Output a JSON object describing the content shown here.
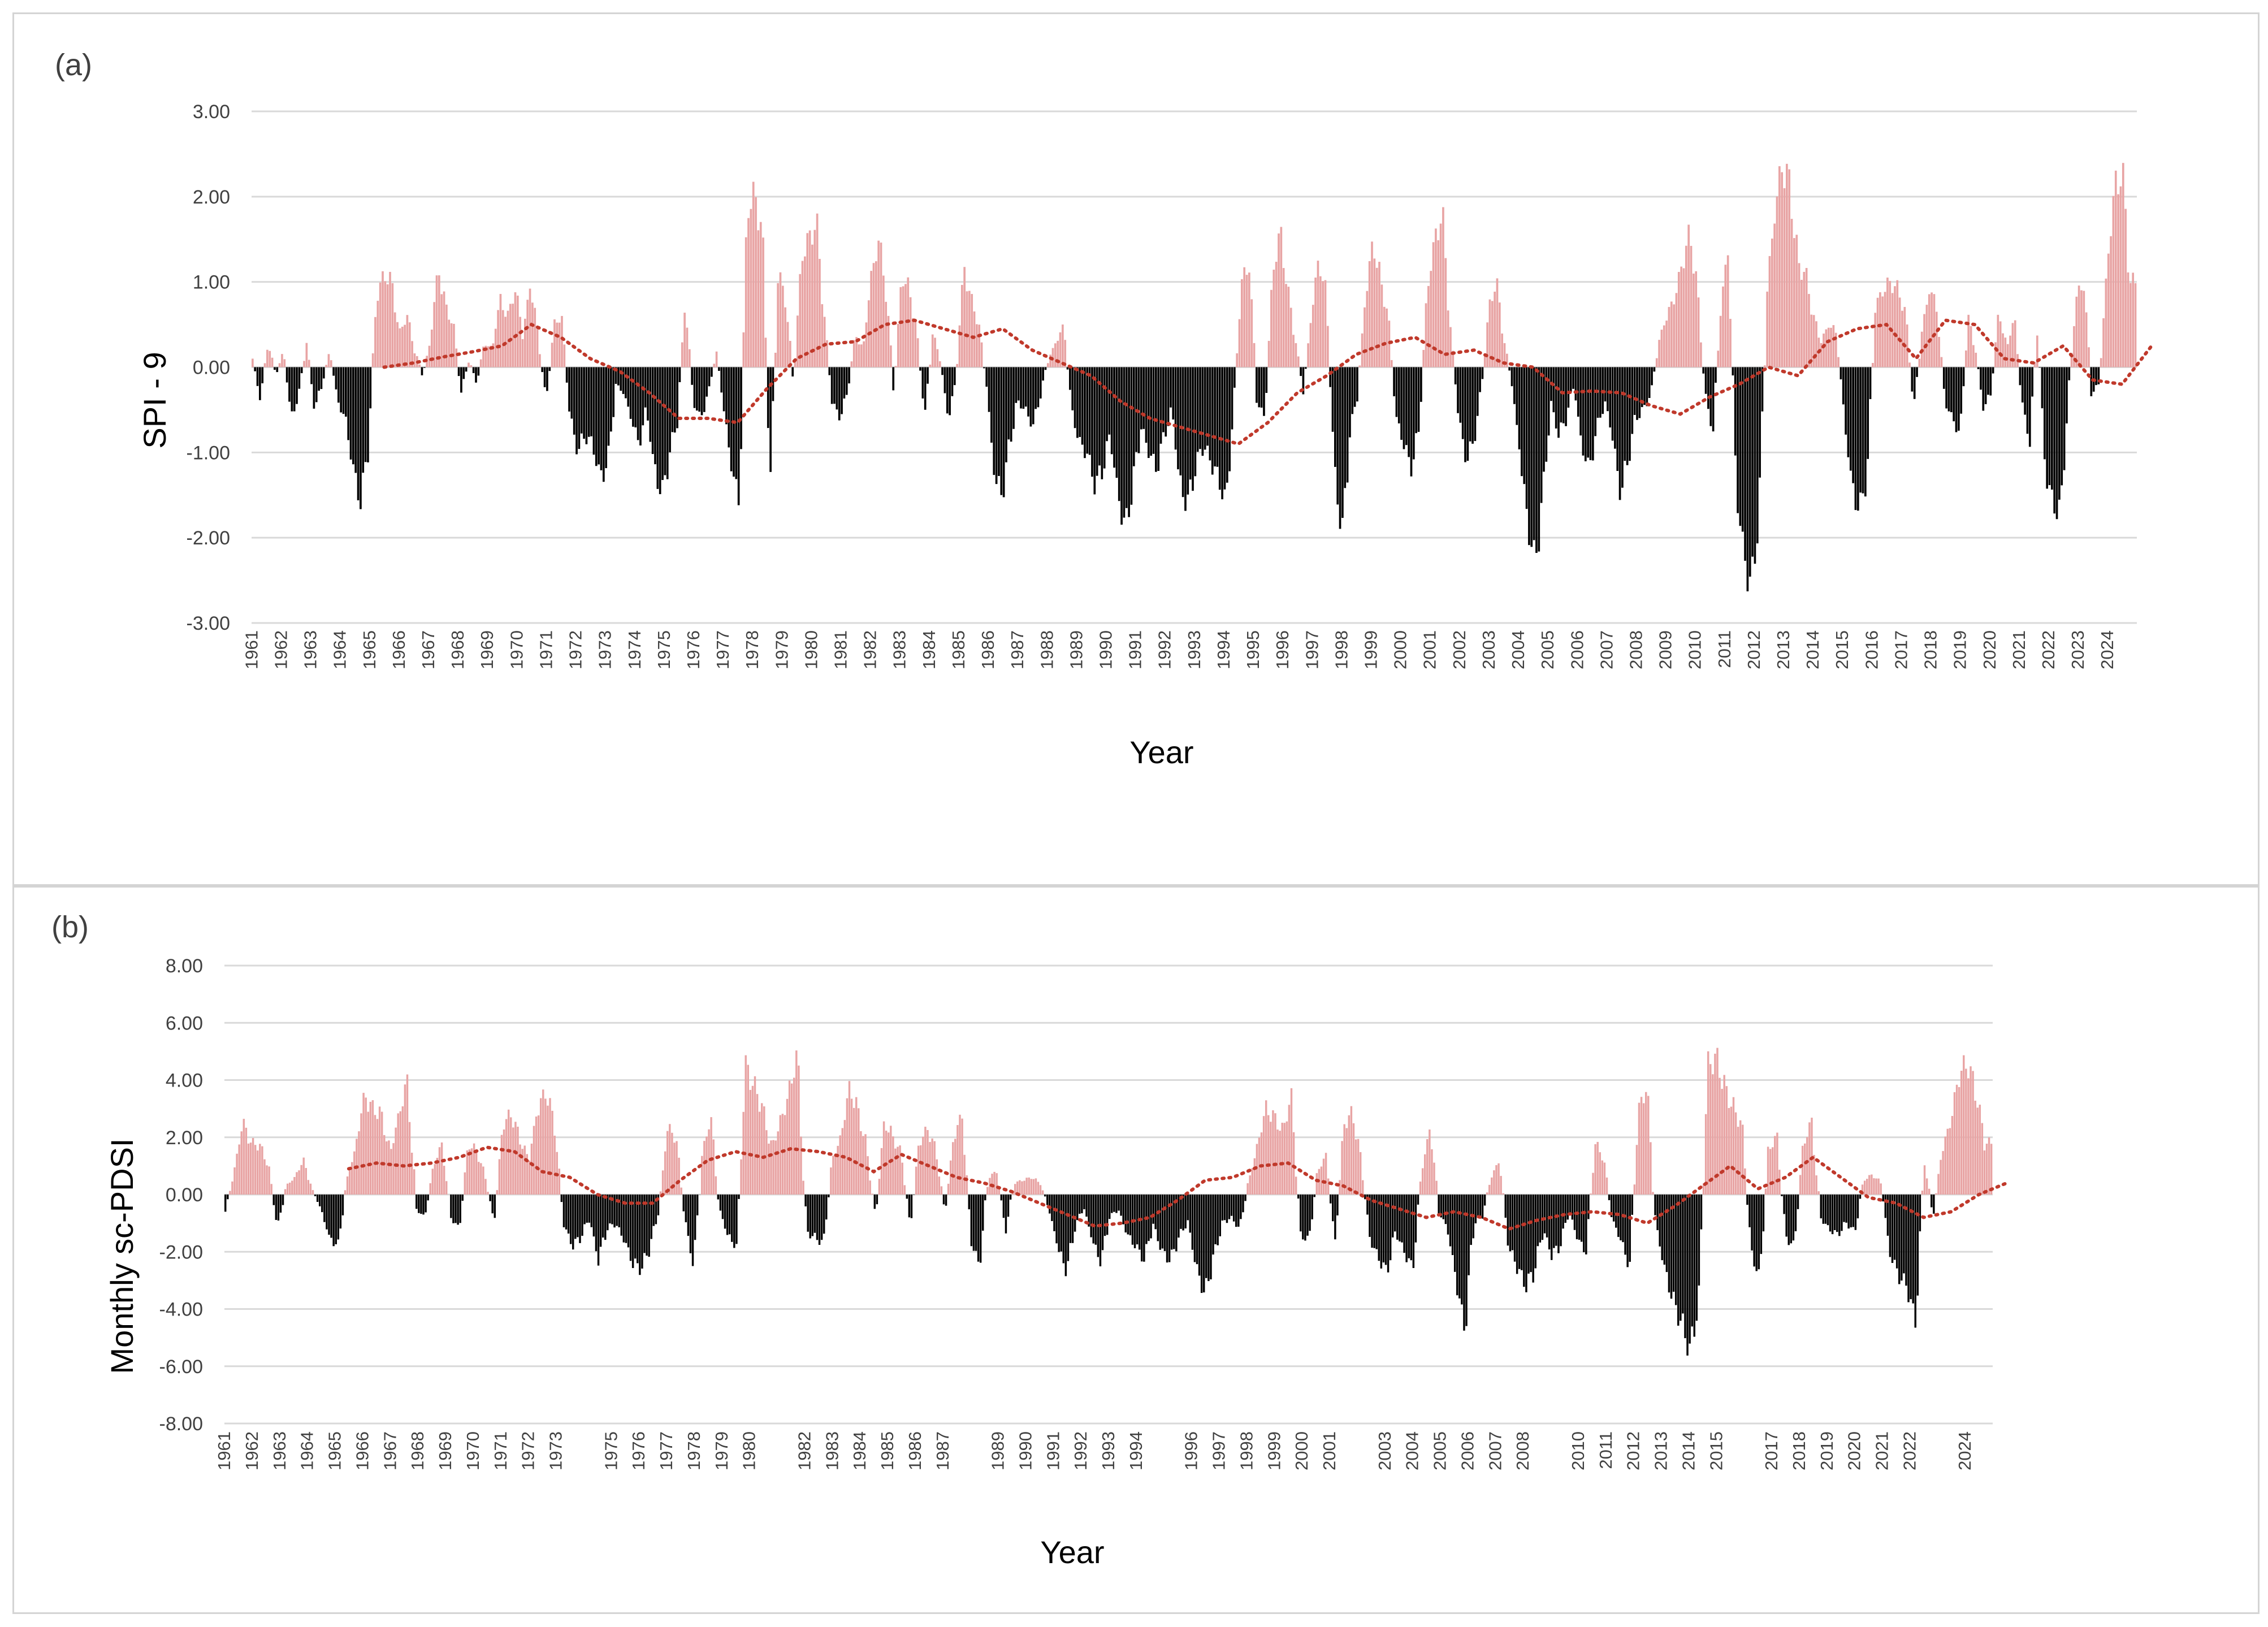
{
  "colors": {
    "positive": "#e8a4a4",
    "negative": "#000000",
    "trend": "#c0392b",
    "grid": "#d9d9d9",
    "text": "#404040"
  },
  "chart_data": [
    {
      "id": "a",
      "type": "bar",
      "panel_label": "(a)",
      "xlabel": "Year",
      "ylabel": "SPI - 9",
      "ylim": [
        -3,
        3
      ],
      "yticks": [
        3,
        2,
        1,
        0,
        -1,
        -2,
        -3
      ],
      "ytick_labels": [
        "3.00",
        "2.00",
        "1.00",
        "0.00",
        "-1.00",
        "-2.00",
        "-3.00"
      ],
      "grid": true,
      "x_tick_labels": [
        "1961",
        "1962",
        "1963",
        "1964",
        "1965",
        "1966",
        "1967",
        "1968",
        "1969",
        "1970",
        "1971",
        "1972",
        "1973",
        "1974",
        "1975",
        "1976",
        "1977",
        "1978",
        "1979",
        "1980",
        "1981",
        "1982",
        "1983",
        "1984",
        "1985",
        "1986",
        "1987",
        "1988",
        "1989",
        "1990",
        "1991",
        "1992",
        "1993",
        "1994",
        "1995",
        "1996",
        "1997",
        "1998",
        "1999",
        "2000",
        "2001",
        "2002",
        "2003",
        "2004",
        "2005",
        "2006",
        "2007",
        "2008",
        "2009",
        "2010",
        "2011",
        "2012",
        "2013",
        "2014",
        "2015",
        "2016",
        "2017",
        "2018",
        "2019",
        "2020",
        "2021",
        "2022",
        "2023",
        "2024"
      ],
      "series": [
        {
          "type": "bar",
          "years": [
            1961,
            2024
          ],
          "approx_monthly_values_by_quarter": [
            0.1,
            -0.4,
            0.3,
            -0.1,
            0.2,
            -0.6,
            -0.3,
            0.3,
            -0.5,
            -0.2,
            0.2,
            -0.4,
            -0.6,
            -1.2,
            -1.6,
            -0.9,
            0.8,
            1.1,
            1.0,
            0.4,
            0.6,
            0.2,
            -0.1,
            0.3,
            1.2,
            0.7,
            0.5,
            -0.3,
            0.1,
            -0.2,
            0.3,
            0.2,
            0.8,
            0.6,
            0.9,
            0.4,
            1.0,
            0.3,
            -0.4,
            0.5,
            0.6,
            -0.5,
            -1.0,
            -0.8,
            -0.9,
            -1.3,
            -1.1,
            -0.2,
            -0.3,
            -0.6,
            -0.9,
            -0.5,
            -1.2,
            -1.5,
            -1.0,
            -0.6,
            0.8,
            -0.4,
            -0.6,
            -0.3,
            0.2,
            -0.5,
            -1.2,
            -1.6,
            1.9,
            2.0,
            1.6,
            -1.4,
            1.1,
            0.8,
            -0.2,
            1.3,
            1.5,
            1.7,
            0.6,
            -0.4,
            -0.6,
            -0.3,
            0.4,
            0.2,
            1.0,
            1.5,
            0.9,
            -0.3,
            1.1,
            0.9,
            0.4,
            -0.6,
            0.4,
            0.1,
            -0.6,
            -0.2,
            1.2,
            0.8,
            0.5,
            -0.2,
            -1.3,
            -1.5,
            -0.9,
            -0.4,
            -0.5,
            -0.7,
            -0.3,
            0.1,
            0.3,
            0.5,
            -0.5,
            -0.9,
            -1.0,
            -1.4,
            -1.2,
            -0.8,
            -1.5,
            -1.9,
            -1.3,
            -0.7,
            -1.0,
            -1.2,
            -0.8,
            -0.5,
            -1.4,
            -1.6,
            -1.2,
            -0.9,
            -1.1,
            -1.3,
            -1.6,
            -0.4,
            1.0,
            1.2,
            -0.4,
            -0.6,
            1.1,
            1.6,
            0.9,
            0.3,
            -0.3,
            0.6,
            1.3,
            0.8,
            -1.2,
            -2.0,
            -0.8,
            -0.3,
            0.8,
            1.5,
            1.0,
            0.6,
            -0.6,
            -0.9,
            -1.2,
            -0.7,
            0.9,
            1.5,
            1.8,
            0.5,
            -0.5,
            -1.1,
            -0.9,
            -0.3,
            0.7,
            1.0,
            0.3,
            -0.2,
            -1.0,
            -1.8,
            -2.3,
            -1.5,
            -0.4,
            -0.8,
            -0.6,
            -0.2,
            -0.9,
            -1.2,
            -0.7,
            -0.4,
            -0.8,
            -1.5,
            -1.1,
            -0.6,
            -0.5,
            -0.3,
            0.3,
            0.6,
            0.8,
            1.2,
            1.6,
            0.9,
            -0.3,
            -0.8,
            0.7,
            1.4,
            -1.4,
            -2.2,
            -2.6,
            -1.6,
            0.9,
            1.8,
            2.4,
            2.1,
            1.2,
            1.1,
            0.6,
            0.3,
            0.5,
            0.4,
            -0.6,
            -1.4,
            -1.7,
            -1.2,
            0.7,
            0.9,
            1.0,
            0.9,
            0.6,
            -0.5,
            0.4,
            0.9,
            0.7,
            -0.4,
            -0.6,
            -0.8,
            0.6,
            0.2,
            -0.5,
            -0.3,
            0.7,
            0.2,
            0.6,
            -0.4,
            -0.9,
            0.5,
            -1.2,
            -1.6,
            -1.7,
            -0.3,
            0.8,
            1.0,
            -0.3,
            -0.2,
            1.2,
            2.1,
            2.3,
            1.0
          ],
          "color_rule": "positive bars pink, negative bars black"
        },
        {
          "type": "line",
          "style": "dotted",
          "name": "",
          "approx_values_by_year": [
            null,
            null,
            null,
            null,
            0.0,
            0.05,
            0.12,
            0.18,
            0.25,
            0.5,
            0.35,
            0.1,
            -0.05,
            -0.3,
            -0.6,
            -0.6,
            -0.65,
            -0.25,
            0.1,
            0.27,
            0.3,
            0.5,
            0.55,
            0.45,
            0.35,
            0.45,
            0.2,
            0.05,
            -0.1,
            -0.4,
            -0.6,
            -0.7,
            -0.8,
            -0.9,
            -0.65,
            -0.3,
            -0.1,
            0.15,
            0.28,
            0.35,
            0.15,
            0.2,
            0.05,
            0.0,
            -0.3,
            -0.28,
            -0.3,
            -0.45,
            -0.55,
            -0.35,
            -0.2,
            0.0,
            -0.1,
            0.3,
            0.45,
            0.5,
            0.1,
            0.55,
            0.5,
            0.1,
            0.05,
            0.25,
            -0.15,
            -0.2,
            0.25
          ]
        }
      ]
    },
    {
      "id": "b",
      "type": "bar",
      "panel_label": "(b)",
      "xlabel": "Year",
      "ylabel": "Monthly sc-PDSI",
      "ylim": [
        -8,
        8
      ],
      "yticks": [
        8,
        6,
        4,
        2,
        0,
        -2,
        -4,
        -6,
        -8
      ],
      "ytick_labels": [
        "8.00",
        "6.00",
        "4.00",
        "2.00",
        "0.00",
        "-2.00",
        "-4.00",
        "-6.00",
        "-8.00"
      ],
      "grid": true,
      "x_tick_labels": [
        "1961",
        "1962",
        "1963",
        "1964",
        "1965",
        "1966",
        "1967",
        "1968",
        "1969",
        "1970",
        "1971",
        "1972",
        "1973",
        "1975",
        "1976",
        "1977",
        "1978",
        "1979",
        "1980",
        "1982",
        "1983",
        "1984",
        "1985",
        "1986",
        "1987",
        "1989",
        "1990",
        "1991",
        "1992",
        "1993",
        "1994",
        "1996",
        "1997",
        "1998",
        "1999",
        "2000",
        "2001",
        "2003",
        "2004",
        "2005",
        "2006",
        "2007",
        "2008",
        "2010",
        "2011",
        "2012",
        "2013",
        "2014",
        "2015",
        "2017",
        "2018",
        "2019",
        "2020",
        "2021",
        "2022",
        "2024"
      ],
      "series": [
        {
          "type": "bar",
          "years": [
            1961,
            2024
          ],
          "approx_monthly_values_by_quarter": [
            -0.6,
            0.8,
            2.5,
            1.8,
            1.7,
            1.0,
            -1.2,
            0.3,
            0.6,
            1.2,
            0.2,
            -0.5,
            -1.5,
            -1.8,
            0.5,
            1.6,
            3.5,
            3.0,
            2.8,
            1.4,
            2.8,
            4.0,
            -0.5,
            -0.8,
            1.0,
            1.8,
            -0.8,
            -1.2,
            1.8,
            1.5,
            0.6,
            -1.0,
            2.5,
            2.8,
            1.9,
            1.2,
            3.0,
            3.6,
            2.4,
            -1.0,
            -1.8,
            -1.5,
            -0.8,
            -2.3,
            -1.2,
            -1.0,
            -1.6,
            -2.4,
            -2.6,
            -1.8,
            -0.5,
            2.3,
            2.0,
            -0.8,
            -2.6,
            1.4,
            2.7,
            -0.5,
            -1.5,
            -1.8,
            4.5,
            3.8,
            3.0,
            1.6,
            2.5,
            3.5,
            5.0,
            -1.3,
            -1.5,
            -1.7,
            1.2,
            2.0,
            3.8,
            2.9,
            1.6,
            -0.9,
            2.6,
            2.0,
            1.4,
            -1.2,
            1.8,
            2.3,
            1.5,
            -0.7,
            2.0,
            2.8,
            -1.6,
            -2.5,
            0.6,
            0.8,
            -1.3,
            0.4,
            0.5,
            0.6,
            0.4,
            -0.5,
            -1.8,
            -2.7,
            -1.2,
            -0.4,
            -1.6,
            -2.4,
            -0.8,
            -0.5,
            -1.4,
            -1.8,
            -2.3,
            -1.0,
            -2.0,
            -2.3,
            -1.5,
            -0.9,
            -2.6,
            -3.5,
            -2.2,
            -1.0,
            -0.8,
            -1.2,
            0.4,
            1.6,
            3.0,
            2.7,
            2.2,
            3.5,
            -1.4,
            -1.6,
            0.8,
            1.4,
            -1.8,
            2.4,
            2.9,
            1.2,
            -1.5,
            -2.2,
            -2.7,
            -1.3,
            -2.0,
            -2.6,
            0.8,
            2.4,
            -0.6,
            -1.2,
            -3.0,
            -4.8,
            -1.0,
            -0.8,
            0.6,
            1.2,
            -1.8,
            -2.5,
            -3.2,
            -2.7,
            -1.2,
            -2.1,
            -1.8,
            -0.5,
            -1.6,
            -2.0,
            1.8,
            1.3,
            -0.9,
            -1.6,
            -2.6,
            2.9,
            3.8,
            -1.0,
            -2.6,
            -3.7,
            -4.5,
            -5.5,
            -3.5,
            4.5,
            4.8,
            3.7,
            3.0,
            2.4,
            -2.0,
            -2.9,
            1.5,
            2.1,
            -1.5,
            -1.8,
            1.7,
            2.6,
            -0.8,
            -1.2,
            -1.4,
            -1.0,
            -1.3,
            0.5,
            0.7,
            0.4,
            -2.0,
            -2.8,
            -3.2,
            -4.5,
            1.2,
            -0.8,
            1.5,
            2.5,
            4.2,
            4.6,
            3.5,
            1.8
          ]
        },
        {
          "type": "line",
          "style": "dotted",
          "name": "",
          "approx_values_by_year": [
            null,
            null,
            null,
            null,
            0.9,
            1.1,
            1.0,
            1.1,
            1.3,
            1.65,
            1.5,
            0.8,
            0.6,
            0.0,
            -0.3,
            -0.3,
            0.5,
            1.2,
            1.5,
            1.3,
            1.6,
            1.5,
            1.3,
            0.8,
            1.4,
            1.0,
            0.6,
            0.4,
            0.1,
            -0.3,
            -0.7,
            -1.1,
            -1.0,
            -0.8,
            -0.2,
            0.5,
            0.6,
            1.0,
            1.1,
            0.5,
            0.3,
            -0.2,
            -0.5,
            -0.8,
            -0.6,
            -0.8,
            -1.2,
            -0.9,
            -0.7,
            -0.6,
            -0.7,
            -1.0,
            -0.4,
            0.3,
            1.0,
            0.2,
            0.6,
            1.3,
            0.6,
            -0.1,
            -0.3,
            -0.8,
            -0.6,
            0.0,
            0.4
          ]
        }
      ]
    }
  ]
}
